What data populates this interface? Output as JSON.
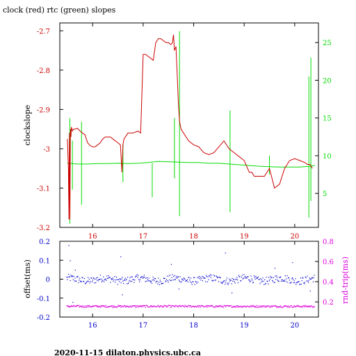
{
  "title": "clock (red) rtc (green) slopes",
  "footer": "2020-11-15  dilaton.physics.ubc.ca",
  "colors": {
    "red": "#cc0000",
    "green": "#00dd00",
    "blue": "#0000cc",
    "magenta": "#dd00dd",
    "black": "#000000"
  },
  "chart_data": [
    {
      "type": "line",
      "title": "clock (red) rtc (green) slopes",
      "ylabel": "clockslope",
      "xlim": [
        15.35,
        20.47
      ],
      "x_ticks": [
        16,
        17,
        18,
        19,
        20
      ],
      "x_tick_labels": [
        "16",
        "17",
        "18",
        "19",
        "20"
      ],
      "ylim_left": [
        -3.2,
        -2.68
      ],
      "y_ticks_left": [
        -3.2,
        -3.1,
        -3.0,
        -2.9,
        -2.8,
        -2.7
      ],
      "y_tick_labels_left": [
        "-3.2",
        "-3.1",
        "-3",
        "-2.9",
        "-2.8",
        "-2.7"
      ],
      "ylim_right": [
        0.5,
        27.6
      ],
      "y_ticks_right": [
        5,
        10,
        15,
        20,
        25
      ],
      "y_tick_labels_right": [
        "5",
        "10",
        "15",
        "20",
        "25"
      ],
      "grid": false,
      "series": [
        {
          "name": "clock",
          "axis": "left",
          "color": "#cc0000",
          "x": [
            15.5,
            15.52,
            15.53,
            15.54,
            15.55,
            15.56,
            15.57,
            15.58,
            15.6,
            15.62,
            15.65,
            15.7,
            15.75,
            15.8,
            15.85,
            15.9,
            15.95,
            16.0,
            16.05,
            16.1,
            16.15,
            16.2,
            16.25,
            16.3,
            16.35,
            16.4,
            16.45,
            16.5,
            16.55,
            16.58,
            16.6,
            16.62,
            16.7,
            16.8,
            16.9,
            16.95,
            17.0,
            17.05,
            17.1,
            17.15,
            17.2,
            17.25,
            17.3,
            17.35,
            17.4,
            17.45,
            17.5,
            17.55,
            17.58,
            17.6,
            17.62,
            17.65,
            17.68,
            17.7,
            17.72,
            17.75,
            17.8,
            17.9,
            18.0,
            18.1,
            18.2,
            18.3,
            18.4,
            18.5,
            18.6,
            18.7,
            18.8,
            18.9,
            19.0,
            19.1,
            19.15,
            19.2,
            19.3,
            19.4,
            19.5,
            19.6,
            19.7,
            19.8,
            19.9,
            20.0,
            20.1,
            20.2,
            20.25,
            20.3,
            20.35
          ],
          "y": [
            -2.975,
            -3.05,
            -3.18,
            -2.96,
            -3.18,
            -2.95,
            -2.97,
            -2.945,
            -2.955,
            -2.95,
            -2.95,
            -2.948,
            -2.955,
            -2.96,
            -2.965,
            -2.985,
            -2.992,
            -2.995,
            -2.995,
            -2.99,
            -2.985,
            -2.975,
            -2.97,
            -2.97,
            -2.97,
            -2.975,
            -2.98,
            -2.985,
            -2.99,
            -3.06,
            -2.99,
            -2.975,
            -2.96,
            -2.96,
            -2.955,
            -2.96,
            -2.76,
            -2.76,
            -2.765,
            -2.77,
            -2.775,
            -2.73,
            -2.72,
            -2.72,
            -2.725,
            -2.73,
            -2.73,
            -2.735,
            -2.73,
            -2.71,
            -2.75,
            -2.74,
            -2.83,
            -2.89,
            -2.93,
            -2.95,
            -2.96,
            -2.98,
            -2.99,
            -2.995,
            -3.01,
            -3.015,
            -3.01,
            -2.995,
            -2.98,
            -3.0,
            -3.01,
            -3.02,
            -3.03,
            -3.06,
            -3.06,
            -3.07,
            -3.07,
            -3.07,
            -3.05,
            -3.1,
            -3.09,
            -3.05,
            -3.03,
            -3.025,
            -3.03,
            -3.035,
            -3.04,
            -3.04,
            -3.05
          ]
        },
        {
          "name": "rtc",
          "axis": "right",
          "color": "#00dd00",
          "x": [
            15.5,
            15.7,
            15.9,
            16.1,
            16.3,
            16.5,
            16.7,
            16.9,
            17.1,
            17.3,
            17.5,
            17.7,
            17.9,
            18.1,
            18.3,
            18.5,
            18.7,
            18.9,
            19.1,
            19.3,
            19.5,
            19.7,
            19.9,
            20.1,
            20.3,
            20.4
          ],
          "y": [
            9.0,
            8.9,
            8.9,
            8.95,
            8.95,
            9.0,
            8.95,
            9.0,
            9.1,
            9.25,
            9.2,
            9.15,
            9.1,
            9.1,
            9.0,
            9.0,
            8.9,
            8.8,
            8.7,
            8.6,
            8.55,
            8.5,
            8.5,
            8.5,
            8.6,
            8.7
          ],
          "spikes": [
            {
              "x": 15.55,
              "min": 1.0,
              "max": 15.0
            },
            {
              "x": 15.6,
              "min": 5.5,
              "max": 12.0
            },
            {
              "x": 15.78,
              "min": 3.5,
              "max": 14.5
            },
            {
              "x": 16.6,
              "min": 6.5,
              "max": 11.5
            },
            {
              "x": 17.18,
              "min": 4.5,
              "max": 9.0
            },
            {
              "x": 17.72,
              "min": 2.0,
              "max": 26.5
            },
            {
              "x": 17.62,
              "min": 7.0,
              "max": 15.0
            },
            {
              "x": 18.72,
              "min": 2.5,
              "max": 16.0
            },
            {
              "x": 19.5,
              "min": 7.5,
              "max": 10.0
            },
            {
              "x": 20.28,
              "min": 1.8,
              "max": 20.5
            },
            {
              "x": 20.32,
              "min": 4.0,
              "max": 23.0
            }
          ]
        }
      ]
    },
    {
      "type": "scatter",
      "ylabel_left": "offset(ms)",
      "ylabel_right": "rnd-trip(ms)",
      "xlim": [
        15.35,
        20.47
      ],
      "x_ticks": [
        16,
        17,
        18,
        19,
        20
      ],
      "x_tick_labels": [
        "16",
        "17",
        "18",
        "19",
        "20"
      ],
      "ylim_left": [
        -0.2,
        0.2
      ],
      "y_ticks_left": [
        -0.2,
        -0.1,
        0,
        0.1,
        0.2
      ],
      "y_tick_labels_left": [
        "-0.2",
        "-0.1",
        "0",
        "0.1",
        "0.2"
      ],
      "ylim_right": [
        0.05,
        0.8
      ],
      "y_ticks_right": [
        0.2,
        0.4,
        0.6,
        0.8
      ],
      "y_tick_labels_right": [
        "0.2",
        "0.4",
        "0.6",
        "0.8"
      ],
      "grid": false,
      "series": [
        {
          "name": "offset",
          "axis": "left",
          "color": "#0000cc",
          "x_range": [
            15.48,
            20.38
          ],
          "typical_y": 0.0,
          "typical_spread": 0.02,
          "outliers": [
            [
              15.52,
              0.18
            ],
            [
              15.55,
              0.1
            ],
            [
              15.6,
              -0.12
            ],
            [
              15.65,
              0.05
            ],
            [
              16.55,
              0.12
            ],
            [
              16.58,
              -0.08
            ],
            [
              17.55,
              0.08
            ],
            [
              17.7,
              -0.05
            ],
            [
              18.62,
              0.14
            ],
            [
              18.75,
              -0.07
            ],
            [
              19.6,
              0.06
            ],
            [
              19.95,
              0.09
            ],
            [
              20.3,
              -0.06
            ]
          ]
        },
        {
          "name": "rnd-trip",
          "axis": "right",
          "color": "#dd00dd",
          "x_range": [
            15.48,
            20.38
          ],
          "typical_y": 0.16,
          "typical_spread": 0.01
        }
      ]
    }
  ]
}
